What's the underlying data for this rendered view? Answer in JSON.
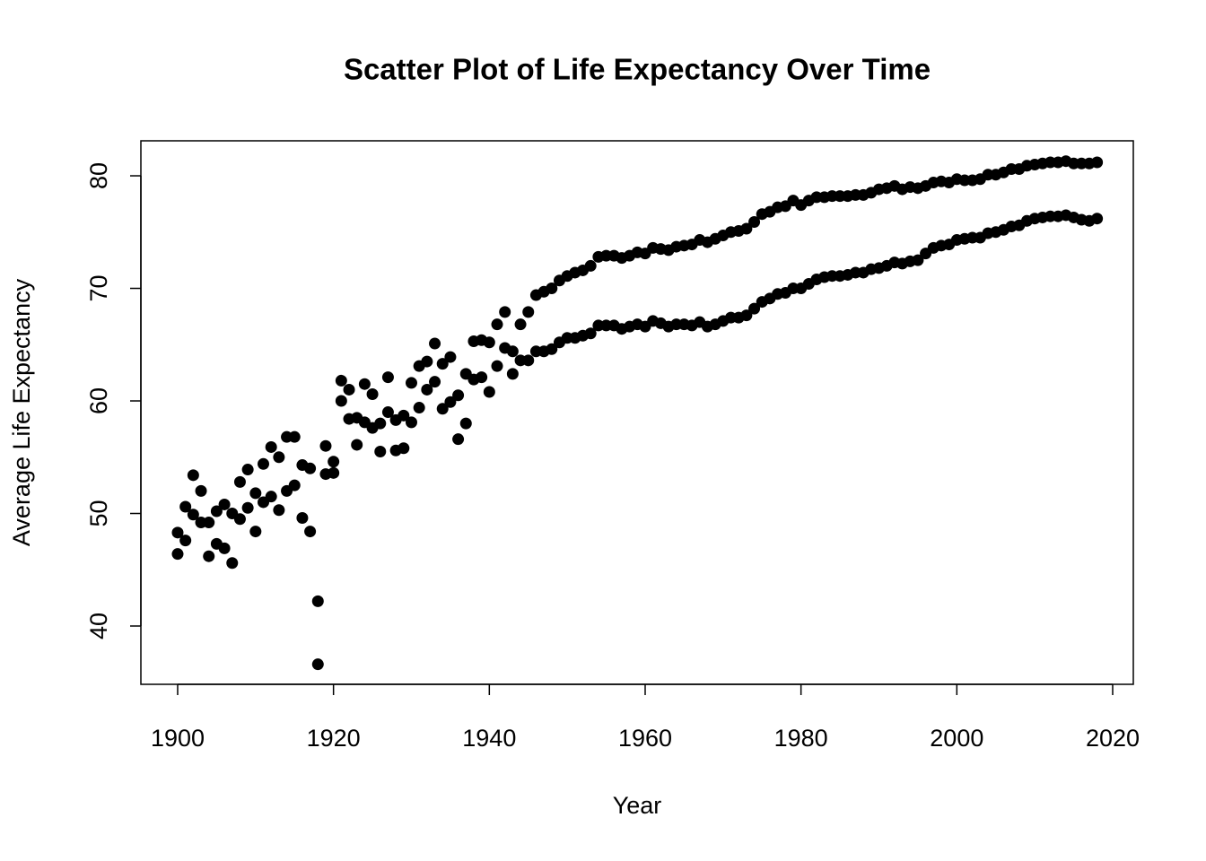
{
  "chart_data": {
    "type": "scatter",
    "title": "Scatter Plot of Life Expectancy Over Time",
    "x_label": "Year",
    "y_label": "Average Life Expectancy",
    "xlim": [
      1895.28,
      2022.65
    ],
    "ylim": [
      34.82,
      83.11
    ],
    "xticks": [
      1900,
      1920,
      1940,
      1960,
      1980,
      2000,
      2020
    ],
    "yticks": [
      40,
      50,
      60,
      70,
      80
    ],
    "x": [
      1900,
      1901,
      1902,
      1903,
      1904,
      1905,
      1906,
      1907,
      1908,
      1909,
      1910,
      1911,
      1912,
      1913,
      1914,
      1915,
      1916,
      1917,
      1918,
      1919,
      1920,
      1921,
      1922,
      1923,
      1924,
      1925,
      1926,
      1927,
      1928,
      1929,
      1930,
      1931,
      1932,
      1933,
      1934,
      1935,
      1936,
      1937,
      1938,
      1939,
      1940,
      1941,
      1942,
      1943,
      1944,
      1945,
      1946,
      1947,
      1948,
      1949,
      1950,
      1951,
      1952,
      1953,
      1954,
      1955,
      1956,
      1957,
      1958,
      1959,
      1960,
      1961,
      1962,
      1963,
      1964,
      1965,
      1966,
      1967,
      1968,
      1969,
      1970,
      1971,
      1972,
      1973,
      1974,
      1975,
      1976,
      1977,
      1978,
      1979,
      1980,
      1981,
      1982,
      1983,
      1984,
      1985,
      1986,
      1987,
      1988,
      1989,
      1990,
      1991,
      1992,
      1993,
      1994,
      1995,
      1996,
      1997,
      1998,
      1999,
      2000,
      2001,
      2002,
      2003,
      2004,
      2005,
      2006,
      2007,
      2008,
      2009,
      2010,
      2011,
      2012,
      2013,
      2014,
      2015,
      2016,
      2017,
      2018
    ],
    "series": [
      {
        "color": "#000000",
        "values": [
          48.3,
          50.6,
          53.4,
          52.0,
          49.2,
          50.2,
          50.8,
          50.0,
          52.8,
          53.9,
          51.8,
          54.4,
          55.9,
          55.0,
          56.8,
          56.8,
          54.3,
          54.0,
          42.2,
          56.0,
          54.6,
          61.8,
          61.0,
          58.5,
          61.5,
          60.6,
          58.0,
          62.1,
          58.3,
          58.7,
          61.6,
          63.1,
          63.5,
          65.1,
          63.3,
          63.9,
          60.5,
          62.4,
          65.3,
          65.4,
          65.2,
          66.8,
          67.9,
          64.4,
          66.8,
          67.9,
          69.4,
          69.7,
          70.0,
          70.7,
          71.1,
          71.4,
          71.6,
          72.0,
          72.8,
          72.9,
          72.9,
          72.7,
          72.9,
          73.2,
          73.1,
          73.6,
          73.5,
          73.4,
          73.7,
          73.8,
          73.9,
          74.3,
          74.1,
          74.4,
          74.7,
          75.0,
          75.1,
          75.3,
          75.9,
          76.6,
          76.8,
          77.2,
          77.3,
          77.8,
          77.4,
          77.8,
          78.1,
          78.1,
          78.2,
          78.2,
          78.2,
          78.3,
          78.3,
          78.5,
          78.8,
          78.9,
          79.1,
          78.8,
          79.0,
          78.9,
          79.1,
          79.4,
          79.5,
          79.4,
          79.7,
          79.6,
          79.6,
          79.7,
          80.1,
          80.1,
          80.3,
          80.6,
          80.6,
          80.9,
          81.0,
          81.1,
          81.2,
          81.2,
          81.3,
          81.1,
          81.1,
          81.1,
          81.2
        ]
      },
      {
        "color": "#000000",
        "values": [
          46.4,
          47.6,
          49.9,
          49.2,
          46.2,
          47.3,
          46.9,
          45.6,
          49.5,
          50.5,
          48.4,
          51.0,
          51.5,
          50.3,
          52.0,
          52.5,
          49.6,
          48.4,
          36.6,
          53.5,
          53.6,
          60.0,
          58.4,
          56.1,
          58.1,
          57.6,
          55.5,
          59.0,
          55.6,
          55.8,
          58.1,
          59.4,
          61.0,
          61.7,
          59.3,
          59.9,
          56.6,
          58.0,
          61.9,
          62.1,
          60.8,
          63.1,
          64.7,
          62.4,
          63.6,
          63.6,
          64.4,
          64.4,
          64.6,
          65.2,
          65.6,
          65.6,
          65.8,
          66.0,
          66.7,
          66.7,
          66.7,
          66.4,
          66.6,
          66.8,
          66.6,
          67.1,
          66.9,
          66.6,
          66.8,
          66.8,
          66.7,
          67.0,
          66.6,
          66.8,
          67.1,
          67.4,
          67.4,
          67.6,
          68.2,
          68.8,
          69.1,
          69.5,
          69.6,
          70.0,
          70.0,
          70.4,
          70.8,
          71.0,
          71.1,
          71.1,
          71.2,
          71.4,
          71.4,
          71.7,
          71.8,
          72.0,
          72.3,
          72.2,
          72.4,
          72.5,
          73.1,
          73.6,
          73.8,
          73.9,
          74.3,
          74.4,
          74.5,
          74.5,
          74.9,
          75.0,
          75.2,
          75.5,
          75.6,
          76.0,
          76.2,
          76.3,
          76.4,
          76.4,
          76.5,
          76.3,
          76.1,
          76.0,
          76.2
        ]
      }
    ]
  }
}
